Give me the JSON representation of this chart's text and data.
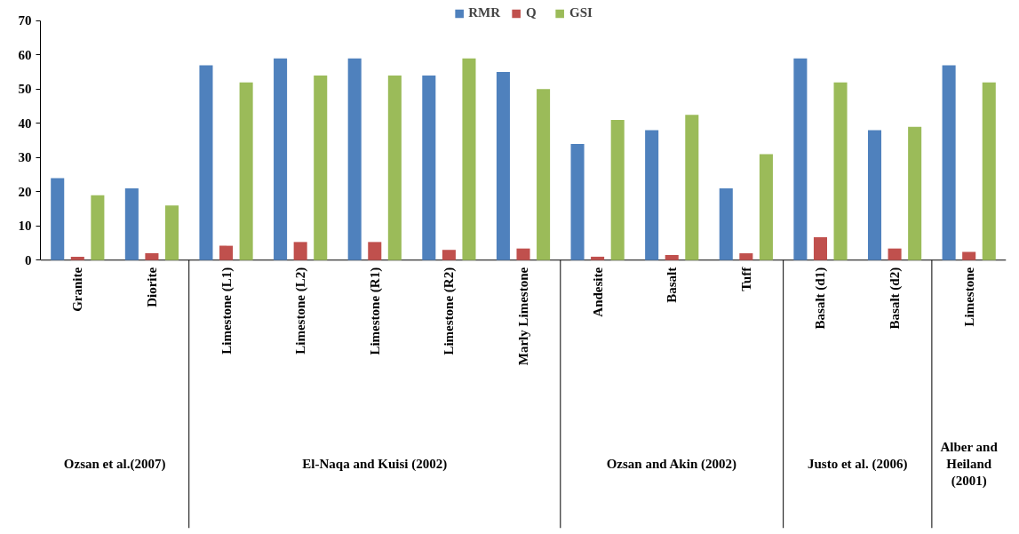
{
  "chart_data": {
    "type": "bar",
    "categories": [
      "Granite",
      "Diorite",
      "Limestone (L1)",
      "Limestone (L2)",
      "Limestone (R1)",
      "Limestone (R2)",
      "Marly Limestone",
      "Andesite",
      "Basalt",
      "Tuff",
      "Basalt (d1)",
      "Basalt (d2)",
      "Limestone"
    ],
    "series": [
      {
        "name": "RMR",
        "color": "#4f81bd",
        "values": [
          24,
          21,
          57,
          59,
          59,
          54,
          55,
          34,
          38,
          21,
          59,
          38,
          57
        ]
      },
      {
        "name": "Q",
        "color": "#c0504d",
        "values": [
          1,
          2,
          4.2,
          5.3,
          5.3,
          3,
          3.4,
          1,
          1.5,
          2,
          6.7,
          3.4,
          2.4
        ]
      },
      {
        "name": "GSI",
        "color": "#9bbb59",
        "values": [
          19,
          16,
          52,
          54,
          54,
          59,
          50,
          41,
          42.5,
          31,
          52,
          39,
          52
        ]
      }
    ],
    "ylim": [
      0,
      70
    ],
    "yticks": [
      0,
      10,
      20,
      30,
      40,
      50,
      60,
      70
    ],
    "grid": false,
    "legend": "top",
    "annotations": [
      "Ozsan et al.(2007)",
      "El-Naqa and Kuisi (2002)",
      "Ozsan and Akin (2002)",
      "Justo et al. (2006)",
      "Alber and Heiland (2001)"
    ]
  }
}
